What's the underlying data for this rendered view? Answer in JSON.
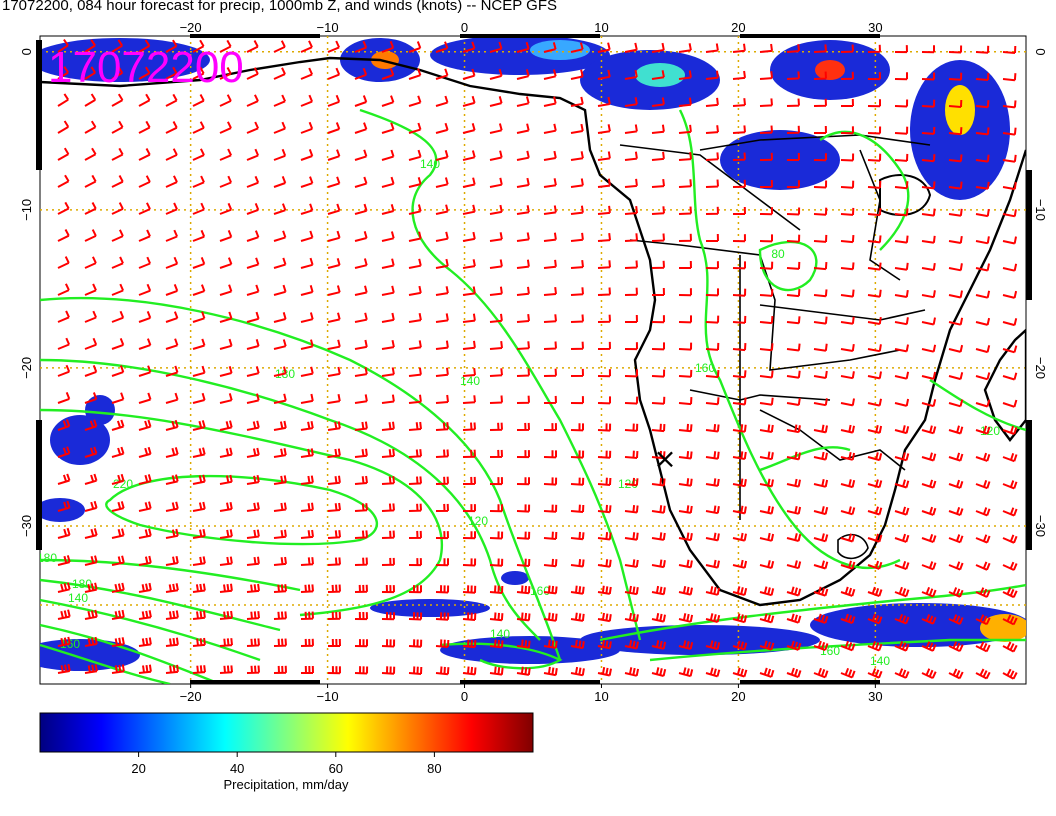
{
  "title": "17072200, 084 hour forecast for precip, 1000mb Z, and winds (knots) -- NCEP GFS",
  "stamp": "17072200",
  "stamp_color": "#ff00ff",
  "map": {
    "lon_range": [
      -31,
      41
    ],
    "lat_range": [
      -40,
      1
    ],
    "lon_ticks": [
      {
        "value": -20,
        "label": "−20"
      },
      {
        "value": -10,
        "label": "−10"
      },
      {
        "value": 0,
        "label": "0"
      },
      {
        "value": 10,
        "label": "10"
      },
      {
        "value": 20,
        "label": "20"
      },
      {
        "value": 30,
        "label": "30"
      }
    ],
    "lat_ticks": [
      {
        "value": 0,
        "label": "0"
      },
      {
        "value": -10,
        "label": "−10"
      },
      {
        "value": -20,
        "label": "−20"
      },
      {
        "value": -30,
        "label": "−30"
      }
    ],
    "grid_color": "#ddaa00",
    "contour_color": "#22ee22",
    "barb_color": "#ff0000",
    "coast_color": "#000000",
    "contour_labels": [
      "140",
      "180",
      "140",
      "220",
      "120",
      "180",
      "160",
      "140",
      "160",
      "80",
      "120",
      "140",
      "160",
      "180",
      "160",
      "140",
      "120"
    ],
    "marker": "×"
  },
  "colorbar": {
    "label": "Precipitation, mm/day",
    "ticks": [
      "20",
      "40",
      "60",
      "80"
    ],
    "tick_values": [
      20,
      40,
      60,
      80
    ],
    "range": [
      0,
      100
    ],
    "colors": [
      "#000080",
      "#0000ff",
      "#0080ff",
      "#00ffff",
      "#80ff80",
      "#ffff00",
      "#ff8000",
      "#ff0000",
      "#800000"
    ]
  }
}
